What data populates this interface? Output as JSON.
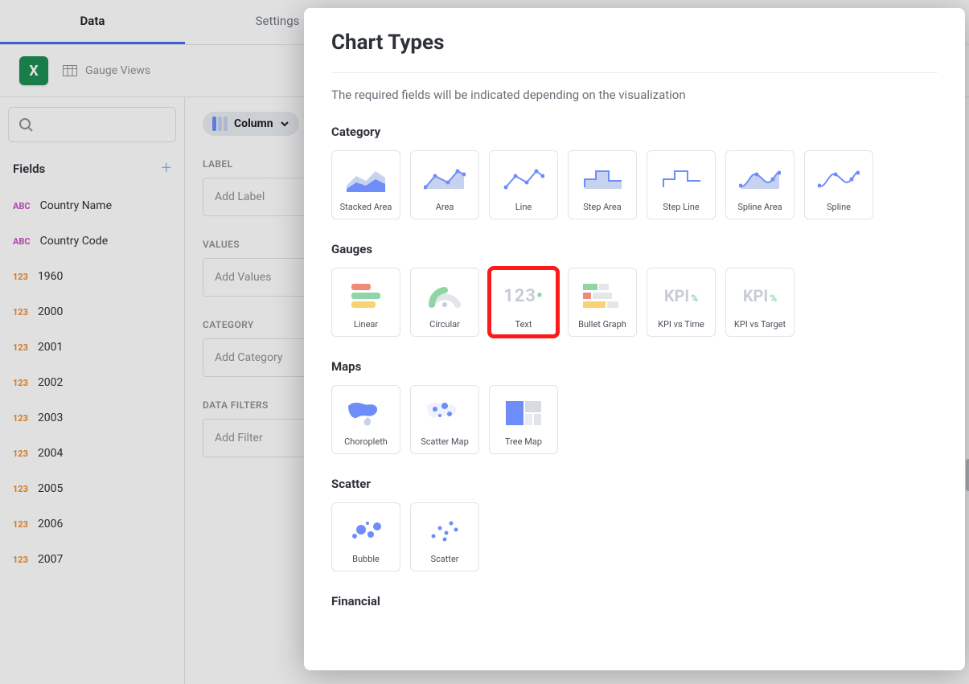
{
  "tabs": {
    "data": "Data",
    "settings": "Settings"
  },
  "datasource": {
    "title": "Gauge Views"
  },
  "sidebar": {
    "fields_header": "Fields",
    "fields": [
      {
        "type": "abc",
        "label": "Country Name"
      },
      {
        "type": "abc",
        "label": "Country Code"
      },
      {
        "type": "num",
        "label": "1960"
      },
      {
        "type": "num",
        "label": "2000"
      },
      {
        "type": "num",
        "label": "2001"
      },
      {
        "type": "num",
        "label": "2002"
      },
      {
        "type": "num",
        "label": "2003"
      },
      {
        "type": "num",
        "label": "2004"
      },
      {
        "type": "num",
        "label": "2005"
      },
      {
        "type": "num",
        "label": "2006"
      },
      {
        "type": "num",
        "label": "2007"
      }
    ]
  },
  "config": {
    "viz_button": "Column",
    "sections": {
      "label": {
        "title": "LABEL",
        "placeholder": "Add Label"
      },
      "values": {
        "title": "VALUES",
        "placeholder": "Add Values"
      },
      "category": {
        "title": "CATEGORY",
        "placeholder": "Add Category"
      },
      "filters": {
        "title": "DATA FILTERS",
        "placeholder": "Add Filter"
      }
    }
  },
  "modal": {
    "title": "Chart Types",
    "description": "The required fields will be indicated depending on the visualization",
    "groups": [
      {
        "title": "Category",
        "items": [
          {
            "id": "stacked-area",
            "label": "Stacked Area"
          },
          {
            "id": "area",
            "label": "Area"
          },
          {
            "id": "line",
            "label": "Line"
          },
          {
            "id": "step-area",
            "label": "Step Area"
          },
          {
            "id": "step-line",
            "label": "Step Line"
          },
          {
            "id": "spline-area",
            "label": "Spline Area"
          },
          {
            "id": "spline",
            "label": "Spline"
          }
        ]
      },
      {
        "title": "Gauges",
        "items": [
          {
            "id": "linear",
            "label": "Linear"
          },
          {
            "id": "circular",
            "label": "Circular"
          },
          {
            "id": "text",
            "label": "Text",
            "highlight": true
          },
          {
            "id": "bullet",
            "label": "Bullet Graph"
          },
          {
            "id": "kpi-time",
            "label": "KPI vs Time"
          },
          {
            "id": "kpi-target",
            "label": "KPI vs Target"
          }
        ]
      },
      {
        "title": "Maps",
        "items": [
          {
            "id": "choropleth",
            "label": "Choropleth"
          },
          {
            "id": "scatter-map",
            "label": "Scatter Map"
          },
          {
            "id": "tree-map",
            "label": "Tree Map"
          }
        ]
      },
      {
        "title": "Scatter",
        "items": [
          {
            "id": "bubble",
            "label": "Bubble"
          },
          {
            "id": "scatter",
            "label": "Scatter"
          }
        ]
      },
      {
        "title": "Financial",
        "items": []
      }
    ]
  },
  "colors": {
    "accent_blue": "#6e8df8",
    "light_blue": "#c7d3ee",
    "green": "#8fd5a5",
    "yellow": "#f9d271",
    "red": "#f18a7c",
    "gray_line": "#c7cdd4",
    "highlight_red": "#ff1a1a",
    "text_muted": "#8e9298",
    "background_dim": "rgba(0,0,0,0.12)"
  },
  "highlight_card": "text"
}
